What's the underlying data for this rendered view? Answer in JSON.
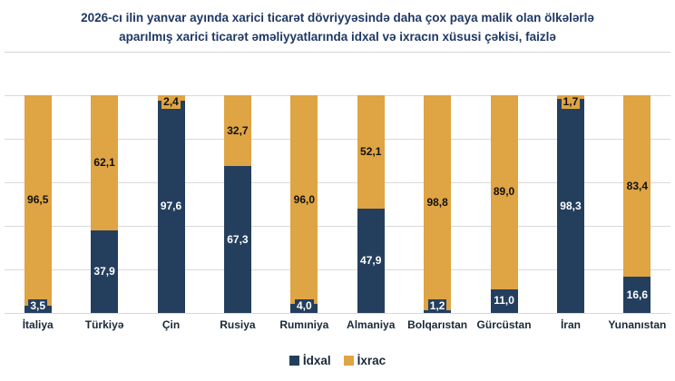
{
  "header": {
    "title_lines": [
      "2026-cı ilin yanvar ayında xarici ticarət dövriyyəsində daha çox paya malik olan ölkələrlə",
      "aparılmış xarici ticarət əməliyyatlarında idxal və ixracın xüsusi çəkisi, faizlə"
    ]
  },
  "chart_data": {
    "type": "bar",
    "stacked": true,
    "orientation": "vertical",
    "title": "2026-cı ilin yanvar ayında xarici ticarət dövriyyəsində daha çox paya malik olan ölkələrlə aparılmış xarici ticarət əməliyyatlarında idxal və ixracın xüsusi çəkisi, faizlə",
    "unit": "faizlə (%)",
    "categories": [
      "İtaliya",
      "Türkiyə",
      "Çin",
      "Rusiya",
      "Rumıniya",
      "Almaniya",
      "Bolqarıstan",
      "Gürcüstan",
      "İran",
      "Yunanıstan"
    ],
    "series": [
      {
        "name": "İdxal",
        "color": "#243F5E",
        "values": [
          3.5,
          37.9,
          97.6,
          67.3,
          4.0,
          47.9,
          1.2,
          11.0,
          98.3,
          16.6
        ],
        "labels": [
          "3,5",
          "37,9",
          "97,6",
          "67,3",
          "4,0",
          "47,9",
          "1,2",
          "11,0",
          "98,3",
          "16,6"
        ]
      },
      {
        "name": "İxrac",
        "color": "#DFA444",
        "values": [
          96.5,
          62.1,
          2.4,
          32.7,
          96.0,
          52.1,
          98.8,
          89.0,
          1.7,
          83.4
        ],
        "labels": [
          "96,5",
          "62,1",
          "2,4",
          "32,7",
          "96,0",
          "52,1",
          "98,8",
          "89,0",
          "1,7",
          "83,4"
        ]
      }
    ],
    "ylim": [
      0,
      100
    ],
    "grid": "horizontal",
    "gridline_color": "#D9D9D9",
    "legend_position": "bottom",
    "label_text_colors": {
      "İdxal": "#ffffff",
      "İxrac": "#111111"
    }
  }
}
